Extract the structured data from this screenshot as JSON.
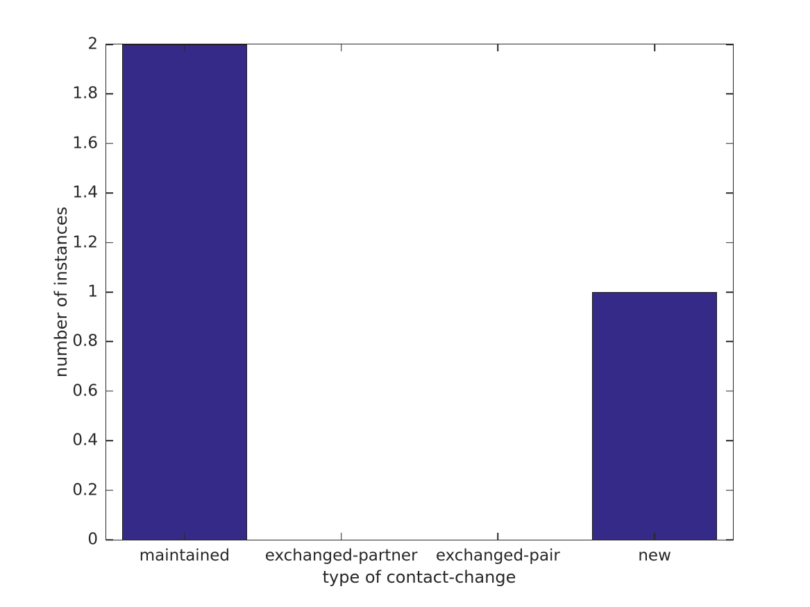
{
  "chart_data": {
    "type": "bar",
    "title": "",
    "xlabel": "type of contact-change",
    "ylabel": "number of instances",
    "categories": [
      "maintained",
      "exchanged-partner",
      "exchanged-pair",
      "new"
    ],
    "values": [
      2,
      0,
      0,
      1
    ],
    "ylim": [
      0,
      2
    ],
    "yticks": [
      0,
      0.2,
      0.4,
      0.6,
      0.8,
      1,
      1.2,
      1.4,
      1.6,
      1.8,
      2
    ],
    "ytick_labels": [
      "0",
      "0.2",
      "0.4",
      "0.6",
      "0.8",
      "1",
      "1.2",
      "1.4",
      "1.6",
      "1.8",
      "2"
    ],
    "bar_width_fraction": 0.8,
    "grid": false,
    "legend_position": "none",
    "tick_direction": "in",
    "colors": {
      "bar_fill": "#352a87",
      "bar_edge": "#1a1a1a",
      "axis": "#262626",
      "text": "#262626",
      "background": "#ffffff"
    }
  }
}
